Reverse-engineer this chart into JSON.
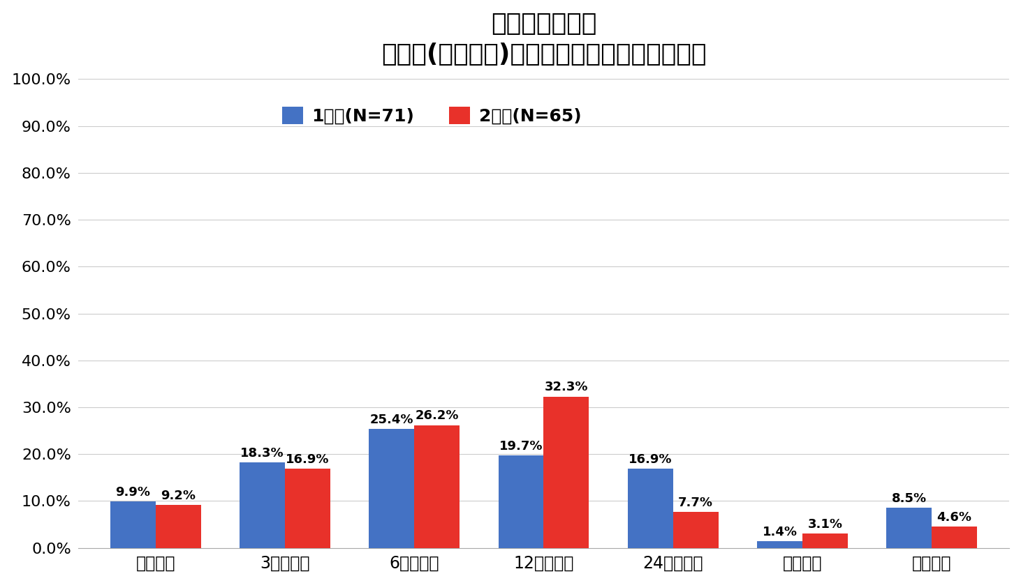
{
  "title_line1": "コロナワクチン",
  "title_line2": "副反応(注射部位)が発生するまでにかかる時間",
  "categories": [
    "接種直後",
    "3時間以内",
    "6時間以内",
    "12時間以内",
    "24時間以内",
    "それ以降",
    "症状なし"
  ],
  "series1_label": "1回目(N=71)",
  "series2_label": "2回目(N=65)",
  "series1_values": [
    9.9,
    18.3,
    25.4,
    19.7,
    16.9,
    1.4,
    8.5
  ],
  "series2_values": [
    9.2,
    16.9,
    26.2,
    32.3,
    7.7,
    3.1,
    4.6
  ],
  "series1_color": "#4472C4",
  "series2_color": "#E8312A",
  "bar_width": 0.35,
  "ylim": [
    0,
    100
  ],
  "yticks": [
    0,
    10,
    20,
    30,
    40,
    50,
    60,
    70,
    80,
    90,
    100
  ],
  "ytick_labels": [
    "0.0%",
    "10.0%",
    "20.0%",
    "30.0%",
    "40.0%",
    "50.0%",
    "60.0%",
    "70.0%",
    "80.0%",
    "90.0%",
    "100.0%"
  ],
  "background_color": "#FFFFFF",
  "grid_color": "#CCCCCC",
  "title_fontsize": 26,
  "label_fontsize": 17,
  "tick_fontsize": 16,
  "legend_fontsize": 18,
  "value_fontsize": 13
}
